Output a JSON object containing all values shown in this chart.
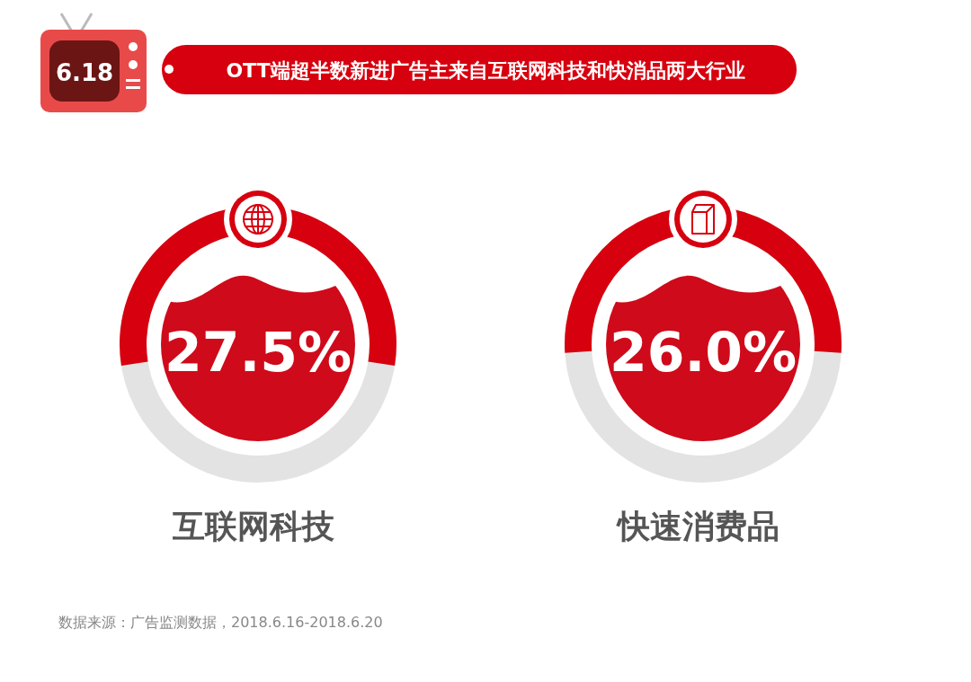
{
  "chart_data": [
    {
      "type": "other",
      "title": "OTT端超半数新进广告主来自互联网科技和快消品两大行业",
      "categories": [
        "互联网科技"
      ],
      "values": [
        27.5
      ],
      "colors": [
        "#d7000f"
      ],
      "value_labels": [
        "27.5%"
      ],
      "annotations": [
        "6.18"
      ]
    },
    {
      "type": "other",
      "categories": [
        "快速消费品"
      ],
      "values": [
        26.0
      ],
      "colors": [
        "#d7000f"
      ],
      "value_labels": [
        "26.0%"
      ],
      "annotations": [
        "数据来源：广告监测数据，2018.6.16-2018.6.20"
      ]
    }
  ]
}
